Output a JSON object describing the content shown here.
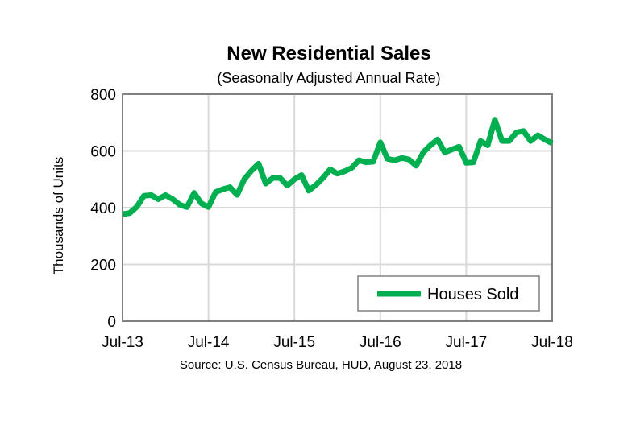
{
  "chart_data": {
    "type": "line",
    "title": "New Residential Sales",
    "subtitle": "(Seasonally Adjusted Annual Rate)",
    "ylabel": "Thousands of Units",
    "xlabel": "",
    "source": "Source:  U.S. Census Bureau, HUD, August 23, 2018",
    "ylim": [
      0,
      800
    ],
    "yticks": [
      "0",
      "200",
      "400",
      "600",
      "800"
    ],
    "xticks": [
      "Jul-13",
      "Jul-14",
      "Jul-15",
      "Jul-16",
      "Jul-17",
      "Jul-18"
    ],
    "grid": true,
    "legend_position": "bottom-right",
    "series": [
      {
        "name": "Houses Sold",
        "color": "#00b050",
        "x_start": "Jul-13",
        "frequency": "monthly",
        "values": [
          377,
          381,
          403,
          442,
          444,
          430,
          444,
          430,
          410,
          402,
          452,
          415,
          402,
          455,
          465,
          472,
          445,
          500,
          530,
          555,
          485,
          505,
          505,
          478,
          500,
          515,
          460,
          480,
          505,
          535,
          520,
          528,
          540,
          567,
          560,
          562,
          630,
          572,
          567,
          575,
          570,
          548,
          595,
          620,
          640,
          595,
          605,
          615,
          558,
          560,
          635,
          620,
          710,
          635,
          635,
          665,
          670,
          635,
          655,
          640,
          627
        ]
      }
    ]
  }
}
